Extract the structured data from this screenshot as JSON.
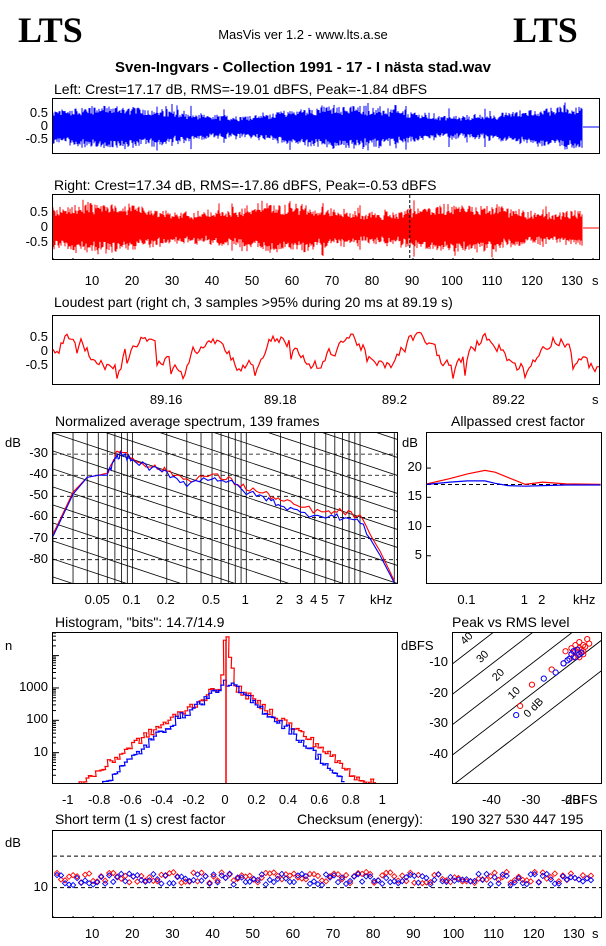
{
  "header": {
    "logo_left": "LTS",
    "logo_right": "LTS",
    "app": "MasVis ver 1.2 - www.lts.a.se",
    "track": "Sven-Ingvars - Collection 1991 - 17 - I nästa stad.wav"
  },
  "colors": {
    "left": "#0000ff",
    "right": "#ff0000",
    "axis": "#000000"
  },
  "checksum": {
    "label": "Checksum (energy):",
    "value": "190 327 530 447 195"
  },
  "chart_data": [
    {
      "type": "area",
      "title": "Left: Crest=17.17 dB, RMS=-19.01 dBFS, Peak=-1.84 dBFS",
      "yticks": [
        "0.5",
        "0",
        "-0.5"
      ],
      "ylim": [
        -1,
        1
      ],
      "xlim": [
        0,
        137
      ],
      "color": "#0000ff"
    },
    {
      "type": "area",
      "title": "Right: Crest=17.34 dB, RMS=-17.86 dBFS, Peak=-0.53 dBFS",
      "yticks": [
        "0.5",
        "0",
        "-0.5"
      ],
      "ylim": [
        -1,
        1
      ],
      "xlim": [
        0,
        137
      ],
      "xticks": [
        "10",
        "20",
        "30",
        "40",
        "50",
        "60",
        "70",
        "80",
        "90",
        "100",
        "110",
        "120",
        "130"
      ],
      "xunit": "s",
      "marker_x": 89.19,
      "color": "#ff0000"
    },
    {
      "type": "line",
      "title": "Loudest part (right ch, 3 samples >95% during 20 ms at 89.19 s)",
      "yticks": [
        "0.5",
        "0",
        "-0.5"
      ],
      "xticks": [
        "89.16",
        "89.18",
        "89.2",
        "89.22"
      ],
      "xunit": "s",
      "xlim": [
        89.14,
        89.236
      ],
      "color": "#ff0000"
    },
    {
      "type": "line",
      "title": "Normalized average spectrum, 139 frames",
      "ylabel": "dB",
      "yticks": [
        "-30",
        "-40",
        "-50",
        "-60",
        "-70",
        "-80"
      ],
      "ylim": [
        -92,
        -20
      ],
      "xticks": [
        "0.05",
        "0.1",
        "0.2",
        "0.5",
        "1",
        "2",
        "3",
        "4",
        "5",
        "7"
      ],
      "xunit": "kHz",
      "xlim": [
        0.02,
        22
      ],
      "xscale": "log",
      "series": [
        {
          "color": "#ff0000",
          "x": [
            0.02,
            0.03,
            0.04,
            0.05,
            0.06,
            0.07,
            0.08,
            0.1,
            0.15,
            0.2,
            0.3,
            0.5,
            0.7,
            1,
            1.5,
            2,
            3,
            5,
            7,
            10,
            15,
            20
          ],
          "y": [
            -68,
            -48,
            -41,
            -40,
            -39,
            -31,
            -28,
            -32,
            -36,
            -38,
            -42,
            -40,
            -42,
            -46,
            -49,
            -52,
            -55,
            -58,
            -57,
            -60,
            -76,
            -90
          ]
        },
        {
          "color": "#0000ff",
          "x": [
            0.02,
            0.03,
            0.04,
            0.05,
            0.06,
            0.07,
            0.08,
            0.1,
            0.15,
            0.2,
            0.3,
            0.5,
            0.7,
            1,
            1.5,
            2,
            3,
            5,
            7,
            10,
            15,
            20
          ],
          "y": [
            -69,
            -49,
            -41,
            -40,
            -40,
            -32,
            -30,
            -33,
            -37,
            -39,
            -44,
            -41,
            -43,
            -48,
            -51,
            -54,
            -58,
            -59,
            -60,
            -62,
            -78,
            -91
          ]
        }
      ]
    },
    {
      "type": "line",
      "title": "Allpassed crest factor",
      "ylabel": "dB",
      "yticks": [
        "20",
        "15",
        "10",
        "5"
      ],
      "ylim": [
        0,
        26
      ],
      "xticks": [
        "0.1",
        "1",
        "2"
      ],
      "xunit": "kHz",
      "xlim": [
        0.02,
        22
      ],
      "xscale": "log",
      "reference": 17.2,
      "series": [
        {
          "color": "#ff0000",
          "x": [
            0.02,
            0.05,
            0.1,
            0.2,
            0.3,
            0.5,
            1,
            2,
            5,
            20
          ],
          "y": [
            17.3,
            18.2,
            19,
            19.6,
            19.3,
            18.4,
            17.2,
            17.6,
            17.3,
            17.2
          ]
        },
        {
          "color": "#0000ff",
          "x": [
            0.02,
            0.05,
            0.1,
            0.2,
            0.3,
            0.5,
            1,
            2,
            5,
            20
          ],
          "y": [
            17.2,
            17.6,
            17.8,
            17.8,
            17.4,
            17.0,
            16.9,
            17.0,
            17.1,
            17.1
          ]
        }
      ]
    },
    {
      "type": "line",
      "title": "Histogram, \"bits\": 14.7/14.9",
      "ylabel": "n",
      "yticks": [
        "1000",
        "100",
        "10"
      ],
      "yscale": "log",
      "ylim": [
        1,
        50000
      ],
      "xticks": [
        "-1",
        "-0.8",
        "-0.6",
        "-0.4",
        "-0.2",
        "0",
        "0.2",
        "0.4",
        "0.6",
        "0.8",
        "1"
      ],
      "xlim": [
        -1.1,
        1.1
      ],
      "series": [
        {
          "color": "#ff0000",
          "x": [
            -0.95,
            -0.8,
            -0.6,
            -0.4,
            -0.2,
            -0.05,
            0,
            0.05,
            0.2,
            0.4,
            0.6,
            0.8,
            0.95
          ],
          "y": [
            1,
            3,
            18,
            80,
            330,
            1100,
            30000,
            1100,
            320,
            70,
            14,
            2,
            1
          ]
        },
        {
          "color": "#0000ff",
          "x": [
            -0.8,
            -0.6,
            -0.4,
            -0.2,
            -0.05,
            0,
            0.05,
            0.2,
            0.4,
            0.6,
            0.75
          ],
          "y": [
            1,
            7,
            55,
            270,
            1000,
            1500,
            1000,
            260,
            50,
            6,
            1
          ]
        }
      ]
    },
    {
      "type": "scatter",
      "title": "Peak vs RMS level",
      "ylabel": "dBFS",
      "xunit": "dBFS",
      "yticks": [
        "-10",
        "-20",
        "-30",
        "-40"
      ],
      "ylim": [
        -50,
        0
      ],
      "xticks": [
        "-40",
        "-30",
        "-20"
      ],
      "xlim": [
        -50,
        -12
      ],
      "diagonal_labels": [
        "40",
        "30",
        "20",
        "10",
        "0 dB"
      ],
      "series": [
        {
          "color": "#ff0000",
          "points": [
            [
              -19,
              -6
            ],
            [
              -18,
              -5
            ],
            [
              -17,
              -4
            ],
            [
              -20,
              -7
            ],
            [
              -18.5,
              -6.5
            ],
            [
              -17.5,
              -5.5
            ],
            [
              -16.5,
              -4.5
            ],
            [
              -19.5,
              -8
            ],
            [
              -21,
              -9
            ],
            [
              -22,
              -10
            ],
            [
              -18,
              -3
            ],
            [
              -16,
              -2
            ],
            [
              -17,
              -7
            ],
            [
              -20,
              -5
            ],
            [
              -15.5,
              -3.5
            ],
            [
              -19,
              -4
            ],
            [
              -21.5,
              -6
            ],
            [
              -25,
              -12
            ],
            [
              -30,
              -17
            ],
            [
              -33,
              -24
            ],
            [
              -17,
              -6
            ],
            [
              -18,
              -8
            ]
          ]
        },
        {
          "color": "#0000ff",
          "points": [
            [
              -20,
              -7
            ],
            [
              -19,
              -8
            ],
            [
              -18,
              -7
            ],
            [
              -21,
              -9
            ],
            [
              -19.5,
              -6
            ],
            [
              -18.5,
              -5.5
            ],
            [
              -20.5,
              -8.5
            ],
            [
              -22,
              -10
            ],
            [
              -24,
              -13
            ],
            [
              -27,
              -15
            ],
            [
              -34,
              -27
            ],
            [
              -17.5,
              -6.5
            ]
          ]
        }
      ]
    },
    {
      "type": "scatter",
      "title": "Short term (1 s) crest factor",
      "ylabel": "dB",
      "yticks": [
        "10"
      ],
      "ylim": [
        0,
        28
      ],
      "reference_lines": [
        20,
        10
      ],
      "xticks": [
        "10",
        "20",
        "30",
        "40",
        "50",
        "60",
        "70",
        "80",
        "90",
        "100",
        "110",
        "120",
        "130"
      ],
      "xunit": "s",
      "xlim": [
        0,
        137
      ],
      "series": [
        {
          "color": "#ff0000",
          "base": 13.2
        },
        {
          "color": "#0000ff",
          "base": 12.6
        }
      ]
    }
  ]
}
